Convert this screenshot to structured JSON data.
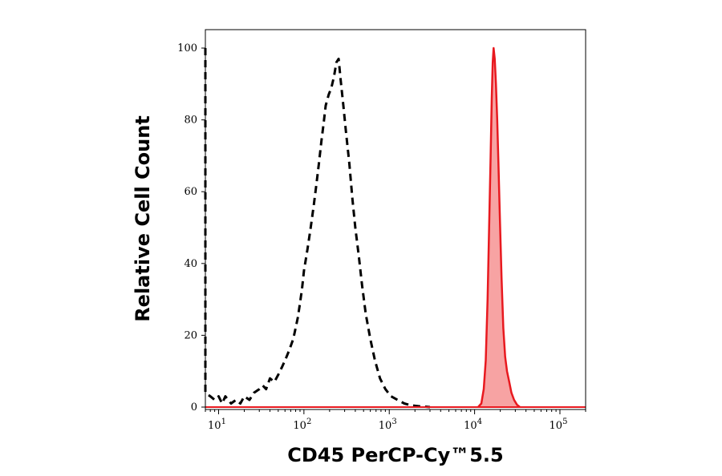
{
  "chart_data": {
    "type": "area",
    "title": "",
    "xlabel": "CD45 PerCP-Cy™5.5",
    "ylabel": "Relative Cell Count",
    "xscale": "log",
    "xlim": [
      7,
      200000
    ],
    "ylim": [
      0,
      103
    ],
    "x_ticks": [
      {
        "value": 10,
        "base": "10",
        "exp": "1"
      },
      {
        "value": 100,
        "base": "10",
        "exp": "2"
      },
      {
        "value": 1000,
        "base": "10",
        "exp": "3"
      },
      {
        "value": 10000,
        "base": "10",
        "exp": "4"
      },
      {
        "value": 100000,
        "base": "10",
        "exp": "5"
      }
    ],
    "y_ticks": [
      0,
      20,
      40,
      60,
      80,
      100
    ],
    "grid": false,
    "legend": "none",
    "series": [
      {
        "style": "dashed",
        "color": "#000000",
        "fill": "none",
        "points": [
          [
            7,
            100
          ],
          [
            7,
            4
          ],
          [
            8,
            3
          ],
          [
            9,
            2
          ],
          [
            10,
            3
          ],
          [
            11,
            1
          ],
          [
            12,
            3
          ],
          [
            14,
            1
          ],
          [
            16,
            2
          ],
          [
            18,
            1
          ],
          [
            20,
            3
          ],
          [
            23,
            2
          ],
          [
            26,
            4
          ],
          [
            30,
            5
          ],
          [
            33,
            6
          ],
          [
            36,
            5
          ],
          [
            40,
            8
          ],
          [
            45,
            7
          ],
          [
            50,
            9
          ],
          [
            55,
            11
          ],
          [
            60,
            13
          ],
          [
            65,
            15
          ],
          [
            70,
            17
          ],
          [
            75,
            19
          ],
          [
            80,
            22
          ],
          [
            85,
            25
          ],
          [
            90,
            29
          ],
          [
            95,
            33
          ],
          [
            100,
            38
          ],
          [
            110,
            44
          ],
          [
            120,
            50
          ],
          [
            130,
            56
          ],
          [
            140,
            62
          ],
          [
            150,
            68
          ],
          [
            160,
            74
          ],
          [
            170,
            79
          ],
          [
            180,
            84
          ],
          [
            195,
            87
          ],
          [
            210,
            89
          ],
          [
            225,
            92
          ],
          [
            240,
            96
          ],
          [
            255,
            97
          ],
          [
            270,
            91
          ],
          [
            290,
            84
          ],
          [
            310,
            77
          ],
          [
            340,
            68
          ],
          [
            370,
            58
          ],
          [
            400,
            50
          ],
          [
            440,
            42
          ],
          [
            480,
            34
          ],
          [
            530,
            26
          ],
          [
            600,
            19
          ],
          [
            680,
            13
          ],
          [
            780,
            8
          ],
          [
            900,
            5
          ],
          [
            1050,
            3
          ],
          [
            1250,
            2
          ],
          [
            1500,
            1
          ],
          [
            1800,
            0.5
          ],
          [
            2300,
            0.2
          ],
          [
            3000,
            0
          ]
        ]
      },
      {
        "style": "solid",
        "color": "#e8191f",
        "fill": "#f7a3a3",
        "points": [
          [
            11000,
            0
          ],
          [
            12000,
            1
          ],
          [
            12800,
            5
          ],
          [
            13500,
            13
          ],
          [
            14200,
            30
          ],
          [
            14800,
            50
          ],
          [
            15400,
            70
          ],
          [
            15900,
            86
          ],
          [
            16300,
            96
          ],
          [
            16700,
            100
          ],
          [
            17200,
            97
          ],
          [
            17800,
            90
          ],
          [
            18400,
            80
          ],
          [
            19000,
            68
          ],
          [
            19800,
            52
          ],
          [
            20700,
            36
          ],
          [
            21700,
            22
          ],
          [
            22800,
            14
          ],
          [
            24000,
            10
          ],
          [
            25500,
            7
          ],
          [
            27000,
            4
          ],
          [
            29000,
            2
          ],
          [
            31500,
            0.6
          ],
          [
            34000,
            0
          ]
        ]
      }
    ]
  }
}
